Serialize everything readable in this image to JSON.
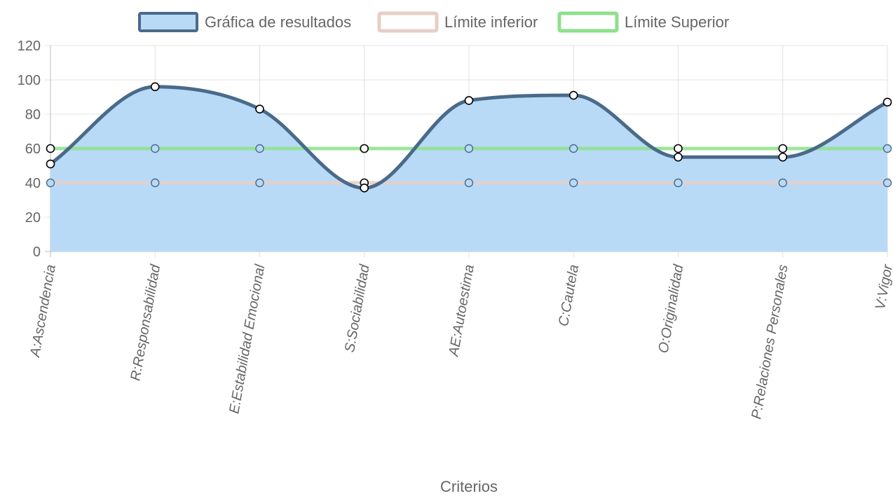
{
  "chart_data": {
    "type": "line",
    "xlabel": "Criterios",
    "ylabel": "",
    "ylim": [
      0,
      120
    ],
    "yticks": [
      0,
      20,
      40,
      60,
      80,
      100,
      120
    ],
    "grid": true,
    "legend_position": "top",
    "categories": [
      "A:Ascendencia",
      "R:Responsabilidad",
      "E:Estabilidad Emocional",
      "S:Sociabilidad",
      "AE:Autoestima",
      "C:Cautela",
      "O:Originalidad",
      "P:Relaciones Personales",
      "V:Vigor"
    ],
    "series": [
      {
        "name": "Gráfica de resultados",
        "values": [
          51,
          96,
          83,
          37,
          88,
          91,
          55,
          55,
          87
        ],
        "stroke": "#4a6a8a",
        "fill": "#b9daf7",
        "filled": true
      },
      {
        "name": "Límite inferior",
        "values": [
          40,
          40,
          40,
          40,
          40,
          40,
          40,
          40,
          40
        ],
        "stroke": "#e6cfc6",
        "fill": "#ffffff",
        "filled": false
      },
      {
        "name": "Límite Superior",
        "values": [
          60,
          60,
          60,
          60,
          60,
          60,
          60,
          60,
          60
        ],
        "stroke": "#8ee08c",
        "fill": "#ffffff",
        "filled": false
      }
    ]
  }
}
